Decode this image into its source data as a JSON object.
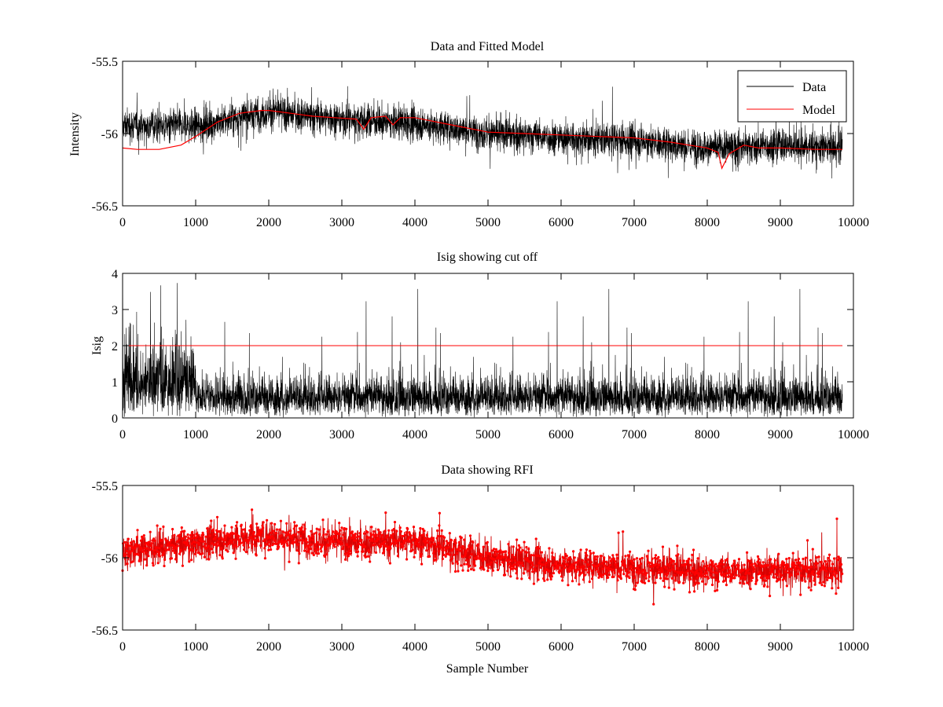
{
  "figure": {
    "background": "#ffffff",
    "colors": {
      "data": "#000000",
      "model": "#ff0000",
      "rfi": "#ff0000",
      "cutoff": "#ff0000"
    }
  },
  "chart_data": [
    {
      "type": "line",
      "title": "Data and Fitted Model",
      "xlabel": "",
      "ylabel": "Intensity",
      "xlim": [
        0,
        10000
      ],
      "ylim": [
        -56.5,
        -55.5
      ],
      "xticks": [
        0,
        1000,
        2000,
        3000,
        4000,
        5000,
        6000,
        7000,
        8000,
        9000,
        10000
      ],
      "yticks": [
        -56.5,
        -56,
        -55.5
      ],
      "ytick_labels": [
        "-56.5",
        "-56",
        "-55.5"
      ],
      "grid": false,
      "legend": {
        "position": "top-right",
        "entries": [
          "Data",
          "Model"
        ]
      },
      "series": [
        {
          "name": "Data",
          "color": "#000000",
          "style": "noisy line",
          "n_points": 9850,
          "baseline_x": [
            0,
            1000,
            2000,
            3000,
            4000,
            5000,
            6000,
            7000,
            8000,
            9000,
            9850
          ],
          "baseline_y": [
            -55.94,
            -55.95,
            -55.85,
            -55.9,
            -55.93,
            -56.0,
            -56.03,
            -56.05,
            -56.1,
            -56.08,
            -56.1
          ],
          "noise_amplitude": 0.3
        },
        {
          "name": "Model",
          "color": "#ff0000",
          "x": [
            0,
            200,
            500,
            800,
            1000,
            1300,
            1600,
            1900,
            2000,
            2300,
            2600,
            2900,
            3200,
            3300,
            3400,
            3600,
            3700,
            3800,
            4000,
            4500,
            5000,
            5500,
            6000,
            6500,
            7000,
            7500,
            8000,
            8150,
            8200,
            8300,
            8500,
            8700,
            9000,
            9500,
            9850
          ],
          "y": [
            -56.1,
            -56.11,
            -56.11,
            -56.08,
            -56.02,
            -55.92,
            -55.86,
            -55.84,
            -55.84,
            -55.86,
            -55.88,
            -55.89,
            -55.9,
            -55.97,
            -55.89,
            -55.88,
            -55.94,
            -55.89,
            -55.89,
            -55.94,
            -55.99,
            -56.0,
            -56.01,
            -56.02,
            -56.03,
            -56.06,
            -56.1,
            -56.13,
            -56.24,
            -56.14,
            -56.08,
            -56.1,
            -56.1,
            -56.11,
            -56.11
          ]
        }
      ]
    },
    {
      "type": "line",
      "title": "Isig showing cut off",
      "xlabel": "",
      "ylabel": "Isig",
      "xlim": [
        0,
        10000
      ],
      "ylim": [
        0,
        4
      ],
      "xticks": [
        0,
        1000,
        2000,
        3000,
        4000,
        5000,
        6000,
        7000,
        8000,
        9000,
        10000
      ],
      "yticks": [
        0,
        1,
        2,
        3,
        4
      ],
      "ytick_labels": [
        "0",
        "1",
        "2",
        "3",
        "4"
      ],
      "grid": false,
      "series": [
        {
          "name": "Isig",
          "color": "#000000",
          "style": "noisy line",
          "n_points": 9850,
          "segments": [
            {
              "x_range": [
                0,
                1000
              ],
              "typical_max": 2.8,
              "peak": 3.8
            },
            {
              "x_range": [
                1000,
                9850
              ],
              "typical_max": 1.5,
              "peak": 3.6
            }
          ]
        },
        {
          "name": "Cut off",
          "color": "#ff0000",
          "x": [
            0,
            9850
          ],
          "y": [
            2.0,
            2.0
          ]
        }
      ]
    },
    {
      "type": "line",
      "title": "Data showing RFI",
      "xlabel": "Sample Number",
      "ylabel": "",
      "xlim": [
        0,
        10000
      ],
      "ylim": [
        -56.5,
        -55.5
      ],
      "xticks": [
        0,
        1000,
        2000,
        3000,
        4000,
        5000,
        6000,
        7000,
        8000,
        9000,
        10000
      ],
      "yticks": [
        -56.5,
        -56,
        -55.5
      ],
      "ytick_labels": [
        "-56.5",
        "-56",
        "-55.5"
      ],
      "grid": false,
      "series": [
        {
          "name": "Data",
          "color": "#000000",
          "style": "noisy line",
          "n_points": 9850,
          "baseline_x": [
            0,
            1000,
            2000,
            3000,
            4000,
            5000,
            6000,
            7000,
            8000,
            9000,
            9850
          ],
          "baseline_y": [
            -55.95,
            -55.9,
            -55.85,
            -55.9,
            -55.88,
            -56.0,
            -56.05,
            -56.07,
            -56.1,
            -56.08,
            -56.1
          ],
          "noise_amplitude": 0.3
        },
        {
          "name": "RFI",
          "color": "#ff0000",
          "style": "dotted markers + line",
          "n_points": 9850
        }
      ]
    }
  ]
}
